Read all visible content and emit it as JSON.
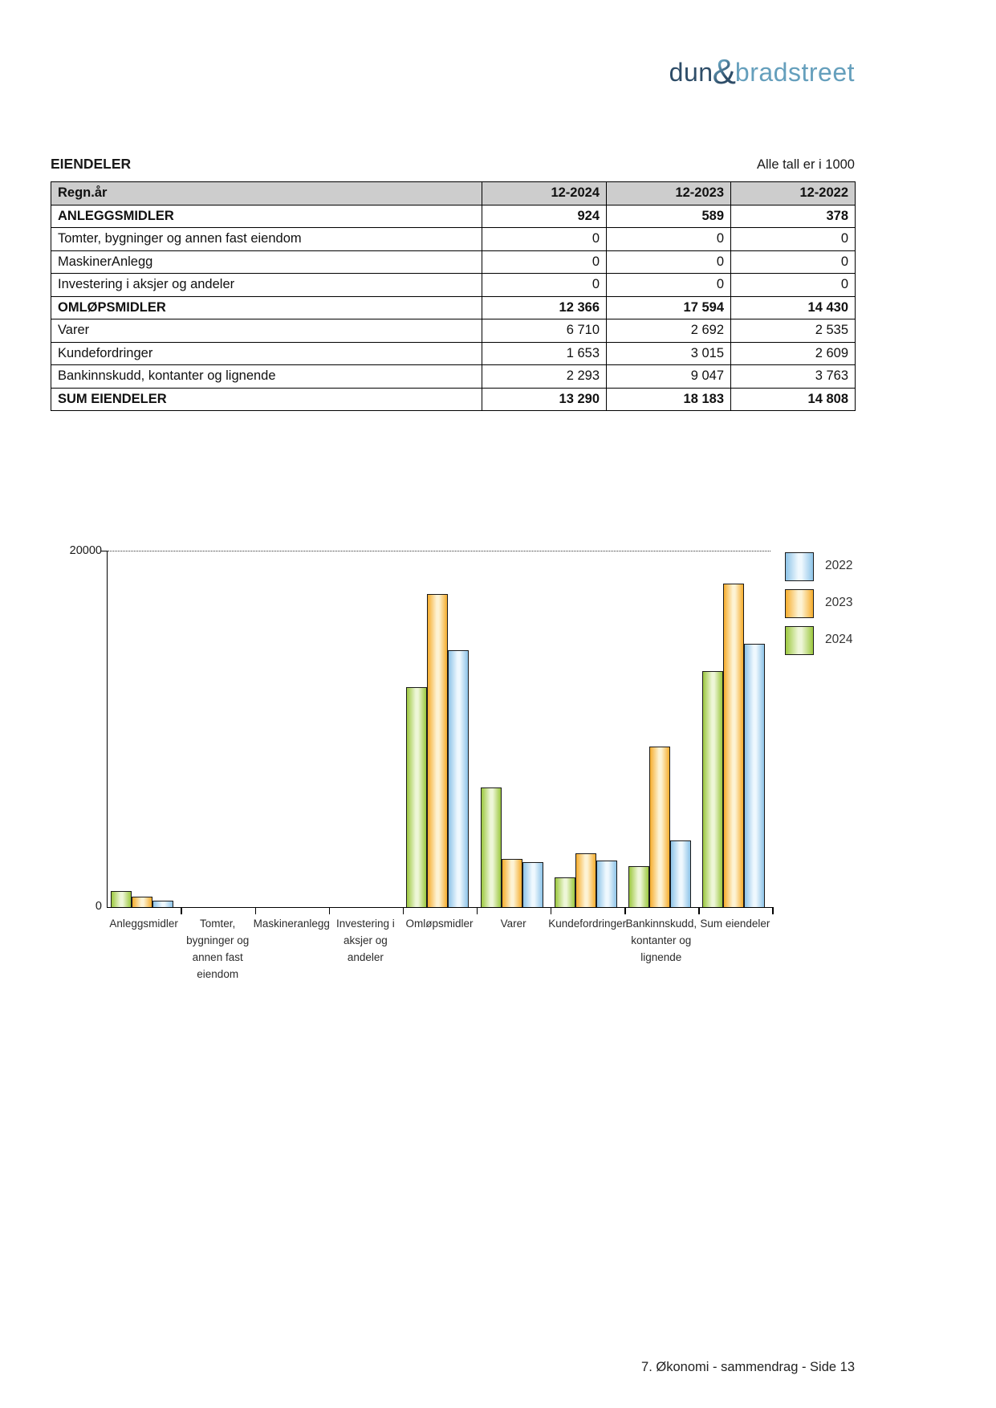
{
  "logo": {
    "part1": "dun",
    "amp": "&",
    "part2": "bradstreet"
  },
  "section": {
    "title": "EIENDELER",
    "note": "Alle tall er i 1000"
  },
  "table": {
    "columns": [
      "Regn.år",
      "12-2024",
      "12-2023",
      "12-2022"
    ],
    "rows": [
      {
        "label": "ANLEGGSMIDLER",
        "values": [
          "924",
          "589",
          "378"
        ],
        "bold": true
      },
      {
        "label": "Tomter, bygninger og annen fast eiendom",
        "values": [
          "0",
          "0",
          "0"
        ],
        "bold": false
      },
      {
        "label": "MaskinerAnlegg",
        "values": [
          "0",
          "0",
          "0"
        ],
        "bold": false
      },
      {
        "label": "Investering i aksjer og andeler",
        "values": [
          "0",
          "0",
          "0"
        ],
        "bold": false
      },
      {
        "label": "OMLØPSMIDLER",
        "values": [
          "12 366",
          "17 594",
          "14 430"
        ],
        "bold": true
      },
      {
        "label": "Varer",
        "values": [
          "6 710",
          "2 692",
          "2 535"
        ],
        "bold": false
      },
      {
        "label": "Kundefordringer",
        "values": [
          "1 653",
          "3 015",
          "2 609"
        ],
        "bold": false
      },
      {
        "label": "Bankinnskudd, kontanter og lignende",
        "values": [
          "2 293",
          "9 047",
          "3 763"
        ],
        "bold": false
      },
      {
        "label": "SUM EIENDELER",
        "values": [
          "13 290",
          "18 183",
          "14 808"
        ],
        "bold": true
      }
    ]
  },
  "chart_data": {
    "type": "bar",
    "title": "",
    "categories": [
      "Anleggsmidler",
      "Tomter, bygninger og annen fast eiendom",
      "Maskineranlegg",
      "Investering i aksjer og andeler",
      "Omløpsmidler",
      "Varer",
      "Kundefordringer",
      "Bankinnskudd, kontanter og lignende",
      "Sum eiendeler"
    ],
    "category_lines": [
      [
        "Anleggsmidler"
      ],
      [
        "Tomter,",
        "bygninger og",
        "annen fast",
        "eiendom"
      ],
      [
        "Maskineranlegg"
      ],
      [
        "Investering i",
        "aksjer og",
        "andeler"
      ],
      [
        "Omløpsmidler"
      ],
      [
        "Varer"
      ],
      [
        "Kundefordringer"
      ],
      [
        "Bankinnskudd,",
        "kontanter og",
        "lignende"
      ],
      [
        "Sum eiendeler"
      ]
    ],
    "series": [
      {
        "name": "2024",
        "values": [
          924,
          0,
          0,
          0,
          12366,
          6710,
          1653,
          2293,
          13290
        ]
      },
      {
        "name": "2023",
        "values": [
          589,
          0,
          0,
          0,
          17594,
          2692,
          3015,
          9047,
          18183
        ]
      },
      {
        "name": "2022",
        "values": [
          378,
          0,
          0,
          0,
          14430,
          2535,
          2609,
          3763,
          14808
        ]
      }
    ],
    "series_colors": {
      "2024": {
        "edge": "#9cc83f",
        "center": "#eef6d8"
      },
      "2023": {
        "edge": "#f6ad2d",
        "center": "#fdf3d4"
      },
      "2022": {
        "edge": "#8ec4e8",
        "center": "#eff8fe"
      }
    },
    "legend": [
      "2022",
      "2023",
      "2024"
    ],
    "legend_position": "right-top",
    "ylim": [
      0,
      20000
    ],
    "yticks": [
      {
        "value": 20000,
        "label": "20000"
      },
      {
        "value": 0,
        "label": "0"
      }
    ],
    "grid": "dotted-top-line-at-ymax"
  },
  "footer": {
    "text": "7. Økonomi - sammendrag - Side 13"
  }
}
